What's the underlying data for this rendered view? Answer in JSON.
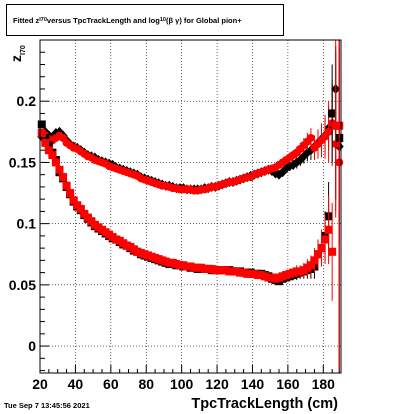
{
  "header": {
    "title_pre": "Fitted  z",
    "title_sub1": "I70",
    "title_mid": "  versus TpcTrackLength and log",
    "title_sub2": "10",
    "title_post": "(β  γ) for Global pion+"
  },
  "footer": {
    "timestamp": "Tue Sep  7 13:45:56 2021"
  },
  "axes": {
    "xlabel": "TpcTrackLength (cm)",
    "ylabel_main": "z",
    "ylabel_sub": "I70"
  },
  "chart_data": {
    "type": "scatter",
    "title": "Fitted z_I70 versus TpcTrackLength and log10(β γ) for Global pion+",
    "xlabel": "TpcTrackLength (cm)",
    "ylabel": "z_I70",
    "xlim": [
      20,
      190
    ],
    "ylim": [
      -0.022,
      0.25
    ],
    "xticks": [
      20,
      40,
      60,
      80,
      100,
      120,
      140,
      160,
      180
    ],
    "yticks": [
      0,
      0.05,
      0.1,
      0.15,
      0.2
    ],
    "ytick_labels": [
      "0",
      "0.05",
      "0.1",
      "0.15",
      "0.2"
    ],
    "grid": true,
    "series": [
      {
        "marker": "diamond",
        "color": "#000000",
        "x": [
          21,
          23,
          25,
          27,
          29,
          31,
          33,
          35,
          37,
          39,
          41,
          43,
          45,
          47,
          49,
          51,
          53,
          55,
          57,
          59,
          61,
          63,
          65,
          67,
          69,
          71,
          73,
          75,
          77,
          79,
          81,
          83,
          85,
          87,
          89,
          91,
          93,
          95,
          97,
          99,
          101,
          103,
          105,
          107,
          109,
          111,
          113,
          115,
          117,
          119,
          121,
          123,
          125,
          127,
          129,
          131,
          133,
          135,
          137,
          139,
          141,
          143,
          145,
          147,
          149,
          151,
          153,
          155,
          157,
          159,
          161,
          163,
          165,
          167,
          169,
          171,
          173,
          175,
          177,
          179,
          181,
          183,
          185,
          187,
          189
        ],
        "y": [
          0.171,
          0.175,
          0.172,
          0.171,
          0.174,
          0.175,
          0.172,
          0.168,
          0.165,
          0.163,
          0.162,
          0.16,
          0.158,
          0.156,
          0.155,
          0.154,
          0.152,
          0.151,
          0.15,
          0.149,
          0.148,
          0.146,
          0.145,
          0.144,
          0.143,
          0.142,
          0.141,
          0.14,
          0.138,
          0.137,
          0.136,
          0.135,
          0.134,
          0.133,
          0.132,
          0.131,
          0.131,
          0.13,
          0.129,
          0.129,
          0.129,
          0.128,
          0.128,
          0.128,
          0.128,
          0.128,
          0.129,
          0.129,
          0.13,
          0.13,
          0.131,
          0.132,
          0.133,
          0.134,
          0.134,
          0.135,
          0.136,
          0.137,
          0.138,
          0.139,
          0.14,
          0.141,
          0.142,
          0.143,
          0.144,
          0.143,
          0.141,
          0.14,
          0.142,
          0.145,
          0.147,
          0.148,
          0.15,
          0.152,
          0.155,
          0.158,
          0.16,
          0.163,
          0.166,
          0.169,
          0.172,
          0.178,
          0.19,
          0.21,
          0.163
        ],
        "err": [
          0.002,
          0.002,
          0.002,
          0.002,
          0.002,
          0.002,
          0.002,
          0.002,
          0.002,
          0.002,
          0.002,
          0.002,
          0.002,
          0.002,
          0.002,
          0.002,
          0.002,
          0.002,
          0.002,
          0.002,
          0.002,
          0.002,
          0.002,
          0.002,
          0.002,
          0.002,
          0.002,
          0.002,
          0.002,
          0.002,
          0.002,
          0.002,
          0.002,
          0.002,
          0.002,
          0.002,
          0.002,
          0.002,
          0.002,
          0.002,
          0.002,
          0.002,
          0.002,
          0.002,
          0.002,
          0.002,
          0.002,
          0.002,
          0.002,
          0.002,
          0.002,
          0.002,
          0.002,
          0.002,
          0.002,
          0.002,
          0.002,
          0.002,
          0.002,
          0.002,
          0.002,
          0.002,
          0.002,
          0.002,
          0.002,
          0.002,
          0.002,
          0.003,
          0.003,
          0.003,
          0.004,
          0.004,
          0.005,
          0.005,
          0.006,
          0.007,
          0.008,
          0.009,
          0.01,
          0.012,
          0.014,
          0.018,
          0.024,
          0.035,
          0.08
        ]
      },
      {
        "marker": "circle",
        "color": "#ff0000",
        "x": [
          21,
          23,
          25,
          27,
          29,
          31,
          33,
          35,
          37,
          39,
          41,
          43,
          45,
          47,
          49,
          51,
          53,
          55,
          57,
          59,
          61,
          63,
          65,
          67,
          69,
          71,
          73,
          75,
          77,
          79,
          81,
          83,
          85,
          87,
          89,
          91,
          93,
          95,
          97,
          99,
          101,
          103,
          105,
          107,
          109,
          111,
          113,
          115,
          117,
          119,
          121,
          123,
          125,
          127,
          129,
          131,
          133,
          135,
          137,
          139,
          141,
          143,
          145,
          147,
          149,
          151,
          153,
          155,
          157,
          159,
          161,
          163,
          165,
          167,
          169,
          171,
          173,
          175,
          177,
          179,
          181,
          183,
          185,
          187,
          189
        ],
        "y": [
          0.174,
          0.172,
          0.169,
          0.168,
          0.17,
          0.172,
          0.17,
          0.166,
          0.164,
          0.162,
          0.161,
          0.159,
          0.157,
          0.155,
          0.154,
          0.152,
          0.151,
          0.15,
          0.149,
          0.147,
          0.146,
          0.145,
          0.144,
          0.143,
          0.142,
          0.141,
          0.14,
          0.139,
          0.137,
          0.136,
          0.135,
          0.134,
          0.133,
          0.132,
          0.131,
          0.131,
          0.13,
          0.129,
          0.129,
          0.128,
          0.128,
          0.128,
          0.128,
          0.127,
          0.127,
          0.128,
          0.128,
          0.129,
          0.13,
          0.13,
          0.131,
          0.132,
          0.133,
          0.134,
          0.134,
          0.135,
          0.136,
          0.137,
          0.138,
          0.138,
          0.14,
          0.141,
          0.142,
          0.143,
          0.144,
          0.145,
          0.146,
          0.148,
          0.15,
          0.152,
          0.154,
          0.156,
          0.158,
          0.161,
          0.164,
          0.167,
          0.17,
          0.162,
          0.165,
          0.168,
          0.171,
          0.175,
          0.182,
          0.165,
          0.15
        ],
        "err": [
          0.002,
          0.002,
          0.002,
          0.002,
          0.002,
          0.002,
          0.002,
          0.002,
          0.002,
          0.002,
          0.002,
          0.002,
          0.002,
          0.002,
          0.002,
          0.002,
          0.002,
          0.002,
          0.002,
          0.002,
          0.002,
          0.002,
          0.002,
          0.002,
          0.002,
          0.002,
          0.002,
          0.002,
          0.002,
          0.002,
          0.002,
          0.002,
          0.002,
          0.002,
          0.002,
          0.002,
          0.002,
          0.002,
          0.002,
          0.002,
          0.002,
          0.002,
          0.002,
          0.002,
          0.002,
          0.002,
          0.002,
          0.002,
          0.002,
          0.002,
          0.002,
          0.002,
          0.002,
          0.002,
          0.002,
          0.002,
          0.002,
          0.002,
          0.002,
          0.002,
          0.002,
          0.002,
          0.002,
          0.002,
          0.002,
          0.002,
          0.002,
          0.003,
          0.003,
          0.003,
          0.004,
          0.004,
          0.005,
          0.005,
          0.006,
          0.007,
          0.008,
          0.01,
          0.012,
          0.014,
          0.018,
          0.025,
          0.035,
          0.06,
          0.2
        ]
      },
      {
        "marker": "square",
        "color": "#000000",
        "x": [
          21,
          23,
          25,
          27,
          29,
          31,
          33,
          35,
          37,
          39,
          41,
          43,
          45,
          47,
          49,
          51,
          53,
          55,
          57,
          59,
          61,
          63,
          65,
          67,
          69,
          71,
          73,
          75,
          77,
          79,
          81,
          83,
          85,
          87,
          89,
          91,
          93,
          95,
          97,
          99,
          101,
          103,
          105,
          107,
          109,
          111,
          113,
          115,
          117,
          119,
          121,
          123,
          125,
          127,
          129,
          131,
          133,
          135,
          137,
          139,
          141,
          143,
          145,
          147,
          149,
          151,
          153,
          155,
          157,
          159,
          161,
          163,
          165,
          167,
          169,
          171,
          173,
          175,
          177,
          179,
          181,
          183,
          185,
          187,
          189
        ],
        "y": [
          0.181,
          0.17,
          0.164,
          0.158,
          0.152,
          0.142,
          0.137,
          0.13,
          0.124,
          0.118,
          0.114,
          0.111,
          0.107,
          0.104,
          0.101,
          0.098,
          0.096,
          0.094,
          0.092,
          0.09,
          0.088,
          0.087,
          0.085,
          0.083,
          0.082,
          0.08,
          0.078,
          0.077,
          0.075,
          0.074,
          0.073,
          0.072,
          0.071,
          0.07,
          0.069,
          0.068,
          0.067,
          0.067,
          0.066,
          0.066,
          0.065,
          0.065,
          0.064,
          0.064,
          0.063,
          0.063,
          0.063,
          0.063,
          0.062,
          0.062,
          0.062,
          0.062,
          0.062,
          0.062,
          0.061,
          0.061,
          0.061,
          0.06,
          0.06,
          0.06,
          0.059,
          0.059,
          0.059,
          0.058,
          0.057,
          0.055,
          0.054,
          0.053,
          0.055,
          0.056,
          0.057,
          0.058,
          0.059,
          0.06,
          0.061,
          0.062,
          0.063,
          0.065,
          0.075,
          0.08,
          0.09,
          0.106,
          0.19,
          0.18,
          0.17
        ],
        "err": [
          0.002,
          0.002,
          0.002,
          0.002,
          0.002,
          0.002,
          0.002,
          0.002,
          0.002,
          0.002,
          0.002,
          0.002,
          0.002,
          0.002,
          0.002,
          0.002,
          0.002,
          0.002,
          0.002,
          0.002,
          0.002,
          0.002,
          0.002,
          0.002,
          0.002,
          0.002,
          0.002,
          0.002,
          0.002,
          0.002,
          0.002,
          0.002,
          0.002,
          0.002,
          0.002,
          0.002,
          0.002,
          0.002,
          0.002,
          0.002,
          0.002,
          0.002,
          0.002,
          0.002,
          0.002,
          0.002,
          0.002,
          0.002,
          0.002,
          0.002,
          0.002,
          0.002,
          0.002,
          0.002,
          0.002,
          0.002,
          0.002,
          0.002,
          0.002,
          0.002,
          0.002,
          0.002,
          0.002,
          0.002,
          0.002,
          0.002,
          0.002,
          0.003,
          0.003,
          0.003,
          0.004,
          0.004,
          0.005,
          0.005,
          0.006,
          0.007,
          0.008,
          0.01,
          0.012,
          0.015,
          0.02,
          0.028,
          0.04,
          0.06,
          0.2
        ]
      },
      {
        "marker": "square",
        "color": "#ff0000",
        "x": [
          21,
          23,
          25,
          27,
          29,
          31,
          33,
          35,
          37,
          39,
          41,
          43,
          45,
          47,
          49,
          51,
          53,
          55,
          57,
          59,
          61,
          63,
          65,
          67,
          69,
          71,
          73,
          75,
          77,
          79,
          81,
          83,
          85,
          87,
          89,
          91,
          93,
          95,
          97,
          99,
          101,
          103,
          105,
          107,
          109,
          111,
          113,
          115,
          117,
          119,
          121,
          123,
          125,
          127,
          129,
          131,
          133,
          135,
          137,
          139,
          141,
          143,
          145,
          147,
          149,
          151,
          153,
          155,
          157,
          159,
          161,
          163,
          165,
          167,
          169,
          171,
          173,
          175,
          177,
          179,
          181,
          183,
          185,
          187,
          189
        ],
        "y": [
          0.174,
          0.166,
          0.16,
          0.156,
          0.15,
          0.144,
          0.138,
          0.131,
          0.125,
          0.119,
          0.115,
          0.112,
          0.108,
          0.105,
          0.102,
          0.099,
          0.097,
          0.095,
          0.093,
          0.091,
          0.089,
          0.087,
          0.086,
          0.084,
          0.082,
          0.081,
          0.079,
          0.077,
          0.076,
          0.075,
          0.074,
          0.073,
          0.072,
          0.071,
          0.07,
          0.069,
          0.068,
          0.068,
          0.067,
          0.066,
          0.066,
          0.065,
          0.065,
          0.064,
          0.064,
          0.064,
          0.063,
          0.063,
          0.063,
          0.062,
          0.062,
          0.062,
          0.062,
          0.061,
          0.061,
          0.061,
          0.06,
          0.06,
          0.059,
          0.059,
          0.059,
          0.058,
          0.058,
          0.057,
          0.056,
          0.056,
          0.055,
          0.056,
          0.057,
          0.058,
          0.059,
          0.06,
          0.061,
          0.061,
          0.062,
          0.064,
          0.066,
          0.07,
          0.075,
          0.08,
          0.087,
          0.095,
          0.077,
          0.18,
          0.18
        ],
        "err": [
          0.002,
          0.002,
          0.002,
          0.002,
          0.002,
          0.002,
          0.002,
          0.002,
          0.002,
          0.002,
          0.002,
          0.002,
          0.002,
          0.002,
          0.002,
          0.002,
          0.002,
          0.002,
          0.002,
          0.002,
          0.002,
          0.002,
          0.002,
          0.002,
          0.002,
          0.002,
          0.002,
          0.002,
          0.002,
          0.002,
          0.002,
          0.002,
          0.002,
          0.002,
          0.002,
          0.002,
          0.002,
          0.002,
          0.002,
          0.002,
          0.002,
          0.002,
          0.002,
          0.002,
          0.002,
          0.002,
          0.002,
          0.002,
          0.002,
          0.002,
          0.002,
          0.002,
          0.002,
          0.002,
          0.002,
          0.002,
          0.002,
          0.002,
          0.002,
          0.002,
          0.002,
          0.002,
          0.002,
          0.002,
          0.002,
          0.002,
          0.002,
          0.003,
          0.003,
          0.003,
          0.004,
          0.004,
          0.005,
          0.005,
          0.006,
          0.007,
          0.008,
          0.01,
          0.012,
          0.015,
          0.02,
          0.028,
          0.04,
          0.07,
          0.2
        ]
      }
    ]
  }
}
